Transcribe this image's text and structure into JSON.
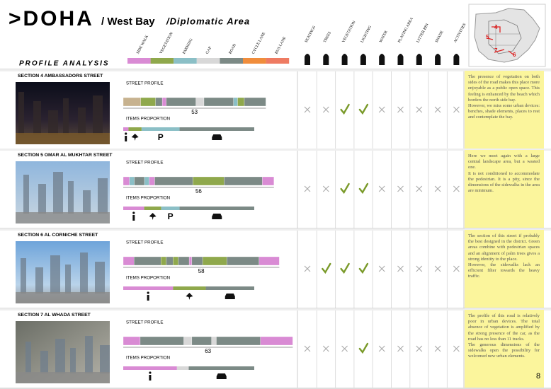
{
  "header": {
    "title": ">DOHA",
    "district": "/ West Bay",
    "area": "/Diplomatic Area",
    "subtitle": "PROFILE ANALYSIS"
  },
  "legend": [
    {
      "label": "SIDE WALK",
      "color": "#d98bd4"
    },
    {
      "label": "VEGETATION",
      "color": "#8fa84c"
    },
    {
      "label": "PARKING",
      "color": "#8bbfc6"
    },
    {
      "label": "GAP",
      "color": "#d8d8d8"
    },
    {
      "label": "ROAD",
      "color": "#7c8a86"
    },
    {
      "label": "CYCLE LANE",
      "color": "#f08d3c"
    },
    {
      "label": "BUS LANE",
      "color": "#ee7b62"
    }
  ],
  "criteria": [
    "SEATINGS",
    "TREES",
    "VEGETATION",
    "LIGHTING",
    "WATER",
    "PLAYING AREA",
    "LITTER BIN",
    "SHADE",
    "ACTIVITIES"
  ],
  "map": {
    "labels": [
      4,
      5,
      7,
      6
    ]
  },
  "profile_label": "STREET PROFILE",
  "proportion_label": "ITEMS PROPORTION",
  "sections": [
    {
      "title": "SECTION 4 AMBASSADORS STREET",
      "width": 53,
      "parking": "P",
      "profile": [
        {
          "color": "#c7b28f",
          "width": 6.5
        },
        {
          "color": "#8fa84c",
          "width": 5.5
        },
        {
          "color": "#7c8a86",
          "width": 2.5
        },
        {
          "color": "#d98bd4",
          "width": 1.5
        },
        {
          "color": "#7c8a86",
          "width": 11
        },
        {
          "color": "#d8d8d8",
          "width": 3
        },
        {
          "color": "#7c8a86",
          "width": 11
        },
        {
          "color": "#8bbfc6",
          "width": 1.5
        },
        {
          "color": "#8fa84c",
          "width": 2.5
        },
        {
          "color": "#7c8a86",
          "width": 8
        }
      ],
      "proportion": [
        {
          "legend": 0,
          "share": 4
        },
        {
          "legend": 1,
          "share": 10
        },
        {
          "legend": 2,
          "share": 29
        },
        {
          "legend": 4,
          "share": 57
        }
      ],
      "checks": [
        false,
        false,
        true,
        true,
        false,
        false,
        false,
        false,
        false
      ],
      "text": [
        "The presence of vegetation on both sides of the road makes this place more enjoyable as a public open space. This feeling is enhanced by the beach which borders the north side bay.",
        "However, we miss some urban devices: benches, shade elements, places to rest and contemplate the bay."
      ]
    },
    {
      "title": "SECTION 5 OMAR AL MUKHTAR STREET",
      "width": 56,
      "parking": "P",
      "profile": [
        {
          "color": "#d98bd4",
          "width": 2.3
        },
        {
          "color": "#8bbfc6",
          "width": 1.8
        },
        {
          "color": "#7c8a86",
          "width": 3.8
        },
        {
          "color": "#8bbfc6",
          "width": 1.8
        },
        {
          "color": "#d98bd4",
          "width": 2
        },
        {
          "color": "#7c8a86",
          "width": 14.2
        },
        {
          "color": "#8fa84c",
          "width": 11.6
        },
        {
          "color": "#7c8a86",
          "width": 14.2
        },
        {
          "color": "#d98bd4",
          "width": 4.3
        }
      ],
      "proportion": [
        {
          "legend": 0,
          "share": 16
        },
        {
          "legend": 1,
          "share": 13
        },
        {
          "legend": 2,
          "share": 14
        },
        {
          "legend": 4,
          "share": 57
        }
      ],
      "checks": [
        false,
        false,
        true,
        true,
        false,
        false,
        false,
        false,
        false
      ],
      "text": [
        "Here we meet again with a large central landscape area, but a wasted one.",
        "It is not conditioned to accommodate the pedestrian. It is a pity, since the dimensions of the sidewalks in the area are minimum."
      ]
    },
    {
      "title": "SECTION 6 AL CORNICHE STREET",
      "width": 58,
      "profile": [
        {
          "color": "#d98bd4",
          "width": 4
        },
        {
          "color": "#7c8a86",
          "width": 10
        },
        {
          "color": "#8fa84c",
          "width": 2
        },
        {
          "color": "#7c8a86",
          "width": 2.5
        },
        {
          "color": "#8fa84c",
          "width": 2
        },
        {
          "color": "#7c8a86",
          "width": 4
        },
        {
          "color": "#d98bd4",
          "width": 1
        },
        {
          "color": "#7c8a86",
          "width": 4
        },
        {
          "color": "#8fa84c",
          "width": 9
        },
        {
          "color": "#7c8a86",
          "width": 12
        },
        {
          "color": "#d98bd4",
          "width": 7.5
        }
      ],
      "proportion": [
        {
          "legend": 0,
          "share": 38
        },
        {
          "legend": 1,
          "share": 25
        },
        {
          "legend": 4,
          "share": 37
        }
      ],
      "checks": [
        false,
        true,
        true,
        true,
        false,
        false,
        false,
        false,
        false
      ],
      "text": [
        "The section of this street if probably the best designed in the district. Green areas combine with pedestrian spaces and an alignment of palm trees gives a strong identity to the place.",
        "However, the sidewalks lack an efficient filter towards the heavy traffic."
      ]
    },
    {
      "title": "SECTION 7 AL WHADA STREET",
      "width": 63,
      "profile": [
        {
          "color": "#d98bd4",
          "width": 6.3
        },
        {
          "color": "#7c8a86",
          "width": 16.2
        },
        {
          "color": "#d8d8d8",
          "width": 3
        },
        {
          "color": "#7c8a86",
          "width": 7.3
        },
        {
          "color": "#d8d8d8",
          "width": 1.8
        },
        {
          "color": "#7c8a86",
          "width": 16.4
        },
        {
          "color": "#d98bd4",
          "width": 12
        }
      ],
      "proportion": [
        {
          "legend": 0,
          "share": 41
        },
        {
          "legend": 3,
          "share": 9
        },
        {
          "legend": 4,
          "share": 50
        }
      ],
      "checks": [
        false,
        false,
        false,
        true,
        false,
        false,
        false,
        false,
        false
      ],
      "text": [
        "The profile of this road is relatively poor in urban devices. The total absence of vegetation is amplified by the strong presence of the car, as the road has no less than 11 tracks.",
        "The generous dimensions of the sidewalks open the possibility for welcomed new urban elements."
      ]
    }
  ],
  "page": 8
}
